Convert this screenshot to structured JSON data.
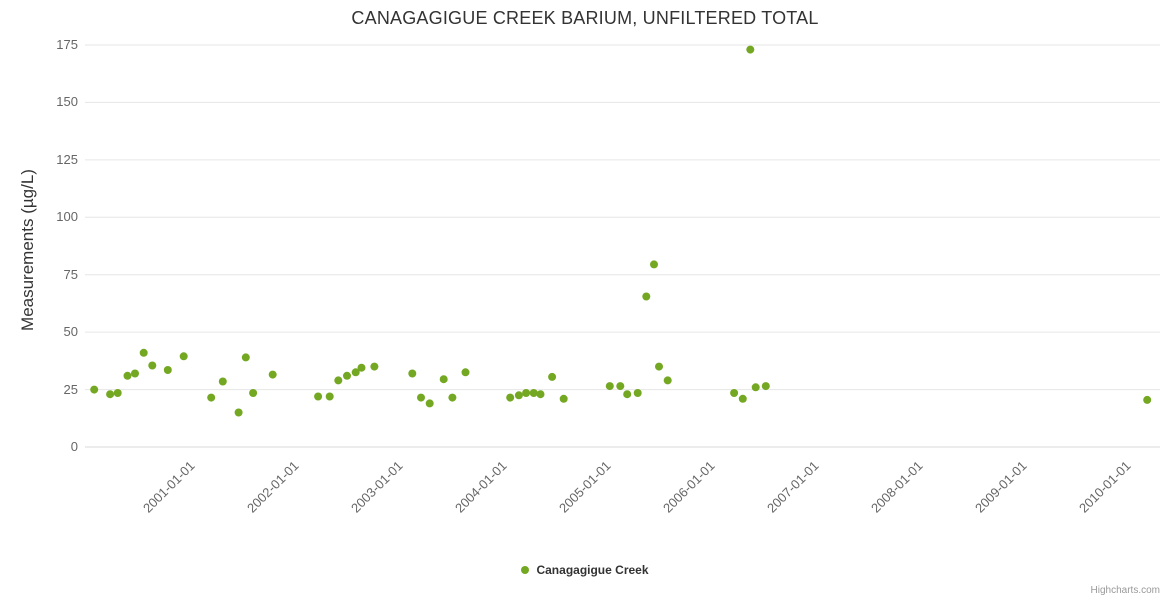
{
  "credits": "Highcharts.com",
  "colors": {
    "marker": "#74a823",
    "grid": "#e6e6e6",
    "axis_line": "#d8d8d8",
    "tick_label": "#666666",
    "title_text": "#333333",
    "credits_text": "#999999"
  },
  "chart_data": {
    "type": "scatter",
    "title": "CANAGAGIGUE CREEK BARIUM, UNFILTERED TOTAL",
    "xlabel": "",
    "ylabel": "Measurements (µg/L)",
    "ylim": [
      0,
      175
    ],
    "y_ticks": [
      0,
      25,
      50,
      75,
      100,
      125,
      150,
      175
    ],
    "x_tick_labels": [
      "2001-01-01",
      "2002-01-01",
      "2003-01-01",
      "2004-01-01",
      "2005-01-01",
      "2006-01-01",
      "2007-01-01",
      "2008-01-01",
      "2009-01-01",
      "2010-01-01"
    ],
    "x_range": [
      "2000-01-01",
      "2010-05-10"
    ],
    "grid": "horizontal",
    "legend_position": "bottom-center",
    "series": [
      {
        "name": "Canagagigue Creek",
        "color": "#74a823",
        "points": [
          [
            "2000-02-10",
            25
          ],
          [
            "2000-04-05",
            23
          ],
          [
            "2000-05-01",
            23.5
          ],
          [
            "2000-06-05",
            31
          ],
          [
            "2000-07-01",
            32
          ],
          [
            "2000-08-01",
            41
          ],
          [
            "2000-09-01",
            35.5
          ],
          [
            "2000-10-25",
            33.5
          ],
          [
            "2000-12-20",
            39.5
          ],
          [
            "2001-03-25",
            21.5
          ],
          [
            "2001-05-05",
            28.5
          ],
          [
            "2001-06-30",
            15
          ],
          [
            "2001-07-25",
            39
          ],
          [
            "2001-08-20",
            23.5
          ],
          [
            "2001-10-28",
            31.5
          ],
          [
            "2002-04-05",
            22
          ],
          [
            "2002-05-15",
            22
          ],
          [
            "2002-06-15",
            29
          ],
          [
            "2002-07-15",
            31
          ],
          [
            "2002-08-15",
            32.5
          ],
          [
            "2002-09-05",
            34.5
          ],
          [
            "2002-10-20",
            35
          ],
          [
            "2003-03-01",
            32
          ],
          [
            "2003-04-01",
            21.5
          ],
          [
            "2003-05-01",
            19
          ],
          [
            "2003-06-20",
            29.5
          ],
          [
            "2003-07-20",
            21.5
          ],
          [
            "2003-09-05",
            32.5
          ],
          [
            "2004-02-10",
            21.5
          ],
          [
            "2004-03-10",
            22.5
          ],
          [
            "2004-04-05",
            23.5
          ],
          [
            "2004-05-01",
            23.5
          ],
          [
            "2004-05-25",
            23
          ],
          [
            "2004-07-05",
            30.5
          ],
          [
            "2004-08-15",
            21
          ],
          [
            "2005-01-25",
            26.5
          ],
          [
            "2005-03-01",
            26.5
          ],
          [
            "2005-03-25",
            23
          ],
          [
            "2005-05-01",
            23.5
          ],
          [
            "2005-06-01",
            65.5
          ],
          [
            "2005-06-28",
            79.5
          ],
          [
            "2005-07-15",
            35
          ],
          [
            "2005-08-15",
            29
          ],
          [
            "2006-04-05",
            23.5
          ],
          [
            "2006-05-05",
            21
          ],
          [
            "2006-06-01",
            173
          ],
          [
            "2006-06-20",
            26
          ],
          [
            "2006-07-25",
            26.5
          ],
          [
            "2010-03-25",
            20.5
          ]
        ]
      }
    ]
  }
}
